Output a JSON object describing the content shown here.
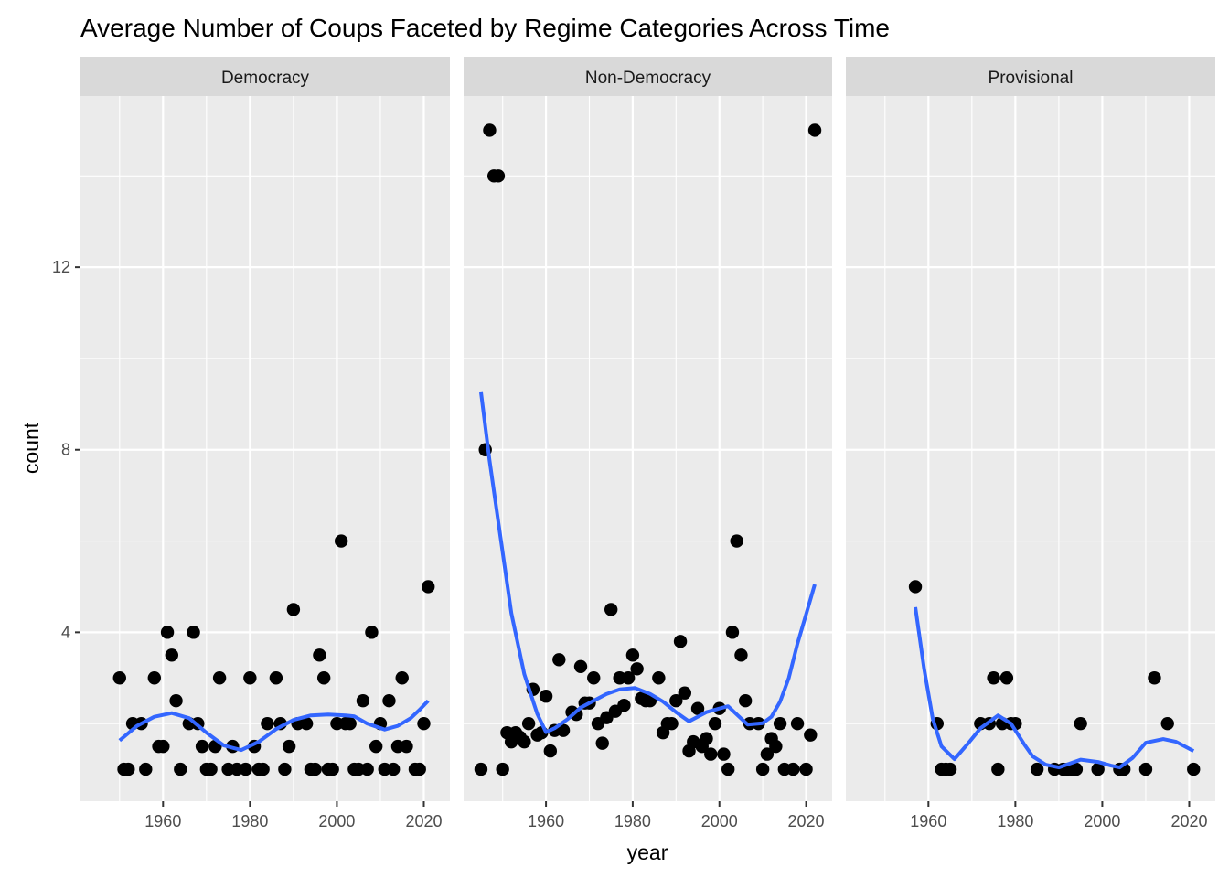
{
  "chart_data": {
    "type": "scatter",
    "title": "Average Number of Coups Faceted by Regime Categories Across Time",
    "xlabel": "year",
    "ylabel": "count",
    "xlim": [
      1941,
      2026
    ],
    "ylim": [
      0.3,
      15.75
    ],
    "x_ticks": [
      1960,
      1980,
      2000,
      2020
    ],
    "y_ticks": [
      4,
      8,
      12
    ],
    "grid": true,
    "legend": null,
    "point_color": "#000000",
    "smooth_color": "#3366FF",
    "panel_background": "#EBEBEB",
    "strip_background": "#D9D9D9",
    "facets": [
      {
        "label": "Democracy",
        "points": [
          [
            1950,
            3
          ],
          [
            1951,
            1
          ],
          [
            1952,
            1
          ],
          [
            1953,
            2
          ],
          [
            1955,
            2
          ],
          [
            1956,
            1
          ],
          [
            1958,
            3
          ],
          [
            1959,
            1.5
          ],
          [
            1960,
            1.5
          ],
          [
            1961,
            4
          ],
          [
            1962,
            3.5
          ],
          [
            1963,
            2.5
          ],
          [
            1964,
            1
          ],
          [
            1966,
            2
          ],
          [
            1967,
            4
          ],
          [
            1968,
            2
          ],
          [
            1969,
            1.5
          ],
          [
            1970,
            1
          ],
          [
            1971,
            1
          ],
          [
            1972,
            1.5
          ],
          [
            1973,
            3
          ],
          [
            1975,
            1
          ],
          [
            1976,
            1.5
          ],
          [
            1977,
            1
          ],
          [
            1979,
            1
          ],
          [
            1980,
            3
          ],
          [
            1981,
            1.5
          ],
          [
            1982,
            1
          ],
          [
            1983,
            1
          ],
          [
            1984,
            2
          ],
          [
            1986,
            3
          ],
          [
            1987,
            2
          ],
          [
            1988,
            1
          ],
          [
            1989,
            1.5
          ],
          [
            1990,
            4.5
          ],
          [
            1991,
            2
          ],
          [
            1993,
            2
          ],
          [
            1994,
            1
          ],
          [
            1995,
            1
          ],
          [
            1996,
            3.5
          ],
          [
            1997,
            3
          ],
          [
            1998,
            1
          ],
          [
            1999,
            1
          ],
          [
            2000,
            2
          ],
          [
            2001,
            6
          ],
          [
            2002,
            2
          ],
          [
            2003,
            2
          ],
          [
            2004,
            1
          ],
          [
            2005,
            1
          ],
          [
            2006,
            2.5
          ],
          [
            2007,
            1
          ],
          [
            2008,
            4
          ],
          [
            2009,
            1.5
          ],
          [
            2010,
            2
          ],
          [
            2011,
            1
          ],
          [
            2012,
            2.5
          ],
          [
            2013,
            1
          ],
          [
            2014,
            1.5
          ],
          [
            2015,
            3
          ],
          [
            2016,
            1.5
          ],
          [
            2018,
            1
          ],
          [
            2019,
            1
          ],
          [
            2020,
            2
          ],
          [
            2021,
            5
          ]
        ],
        "smooth": [
          [
            1950,
            1.63
          ],
          [
            1954,
            1.95
          ],
          [
            1958,
            2.15
          ],
          [
            1962,
            2.23
          ],
          [
            1966,
            2.12
          ],
          [
            1970,
            1.8
          ],
          [
            1974,
            1.52
          ],
          [
            1978,
            1.42
          ],
          [
            1982,
            1.6
          ],
          [
            1986,
            1.88
          ],
          [
            1990,
            2.08
          ],
          [
            1994,
            2.18
          ],
          [
            1998,
            2.2
          ],
          [
            2002,
            2.18
          ],
          [
            2004,
            2.16
          ],
          [
            2007,
            2.0
          ],
          [
            2011,
            1.87
          ],
          [
            2014,
            1.95
          ],
          [
            2017,
            2.12
          ],
          [
            2019,
            2.3
          ],
          [
            2021,
            2.5
          ]
        ]
      },
      {
        "label": "Non-Democracy",
        "points": [
          [
            1945,
            1
          ],
          [
            1946,
            8
          ],
          [
            1947,
            15
          ],
          [
            1948,
            14
          ],
          [
            1949,
            14
          ],
          [
            1950,
            1
          ],
          [
            1951,
            1.8
          ],
          [
            1952,
            1.6
          ],
          [
            1953,
            1.8
          ],
          [
            1954,
            1.7
          ],
          [
            1955,
            1.6
          ],
          [
            1956,
            2
          ],
          [
            1957,
            2.75
          ],
          [
            1958,
            1.75
          ],
          [
            1959,
            1.8
          ],
          [
            1960,
            2.6
          ],
          [
            1961,
            1.4
          ],
          [
            1962,
            1.85
          ],
          [
            1963,
            3.4
          ],
          [
            1964,
            1.85
          ],
          [
            1966,
            2.25
          ],
          [
            1967,
            2.2
          ],
          [
            1968,
            3.25
          ],
          [
            1969,
            2.45
          ],
          [
            1970,
            2.45
          ],
          [
            1971,
            3
          ],
          [
            1972,
            2
          ],
          [
            1973,
            1.57
          ],
          [
            1974,
            2.13
          ],
          [
            1975,
            4.5
          ],
          [
            1976,
            2.27
          ],
          [
            1977,
            3
          ],
          [
            1978,
            2.4
          ],
          [
            1979,
            3
          ],
          [
            1980,
            3.5
          ],
          [
            1981,
            3.2
          ],
          [
            1982,
            2.55
          ],
          [
            1983,
            2.5
          ],
          [
            1984,
            2.5
          ],
          [
            1986,
            3
          ],
          [
            1987,
            1.8
          ],
          [
            1988,
            2
          ],
          [
            1989,
            2
          ],
          [
            1990,
            2.5
          ],
          [
            1991,
            3.8
          ],
          [
            1992,
            2.67
          ],
          [
            1993,
            1.4
          ],
          [
            1994,
            1.6
          ],
          [
            1995,
            2.33
          ],
          [
            1996,
            1.5
          ],
          [
            1997,
            1.67
          ],
          [
            1998,
            1.33
          ],
          [
            1999,
            2
          ],
          [
            2000,
            2.33
          ],
          [
            2001,
            1.33
          ],
          [
            2002,
            1
          ],
          [
            2003,
            4
          ],
          [
            2004,
            6
          ],
          [
            2005,
            3.5
          ],
          [
            2006,
            2.5
          ],
          [
            2007,
            2
          ],
          [
            2009,
            2
          ],
          [
            2010,
            1
          ],
          [
            2011,
            1.33
          ],
          [
            2012,
            1.67
          ],
          [
            2013,
            1.5
          ],
          [
            2014,
            2
          ],
          [
            2015,
            1
          ],
          [
            2017,
            1
          ],
          [
            2018,
            2
          ],
          [
            2020,
            1
          ],
          [
            2021,
            1.75
          ],
          [
            2022,
            15
          ]
        ],
        "smooth": [
          [
            1945,
            9.26
          ],
          [
            1947,
            7.76
          ],
          [
            1949.5,
            6.09
          ],
          [
            1952,
            4.42
          ],
          [
            1955,
            3.08
          ],
          [
            1958,
            2.21
          ],
          [
            1960,
            1.81
          ],
          [
            1962,
            1.9
          ],
          [
            1965,
            2.1
          ],
          [
            1968,
            2.35
          ],
          [
            1971,
            2.5
          ],
          [
            1974,
            2.65
          ],
          [
            1977,
            2.75
          ],
          [
            1980.5,
            2.78
          ],
          [
            1984,
            2.65
          ],
          [
            1987,
            2.48
          ],
          [
            1990,
            2.25
          ],
          [
            1993,
            2.05
          ],
          [
            1997,
            2.25
          ],
          [
            2000,
            2.33
          ],
          [
            2002,
            2.38
          ],
          [
            2004,
            2.2
          ],
          [
            2006.5,
            1.98
          ],
          [
            2010,
            2.01
          ],
          [
            2012,
            2.15
          ],
          [
            2014,
            2.48
          ],
          [
            2016,
            3.0
          ],
          [
            2018,
            3.75
          ],
          [
            2020,
            4.4
          ],
          [
            2022,
            5.05
          ]
        ]
      },
      {
        "label": "Provisional",
        "points": [
          [
            1957,
            5
          ],
          [
            1962,
            2
          ],
          [
            1963,
            1
          ],
          [
            1964,
            1
          ],
          [
            1965,
            1
          ],
          [
            1972,
            2
          ],
          [
            1974,
            2
          ],
          [
            1975,
            3
          ],
          [
            1976,
            1
          ],
          [
            1977,
            2
          ],
          [
            1978,
            3
          ],
          [
            1979,
            2
          ],
          [
            1980,
            2
          ],
          [
            1985,
            1
          ],
          [
            1989,
            1
          ],
          [
            1991,
            1
          ],
          [
            1992,
            1
          ],
          [
            1993,
            1
          ],
          [
            1994,
            1
          ],
          [
            1995,
            2
          ],
          [
            1999,
            1
          ],
          [
            2004,
            1
          ],
          [
            2005,
            1
          ],
          [
            2010,
            1
          ],
          [
            2012,
            3
          ],
          [
            2015,
            2
          ],
          [
            2021,
            1
          ]
        ],
        "smooth": [
          [
            1957,
            4.55
          ],
          [
            1959,
            3.2
          ],
          [
            1961,
            2.1
          ],
          [
            1963,
            1.5
          ],
          [
            1966,
            1.22
          ],
          [
            1969,
            1.55
          ],
          [
            1972,
            1.9
          ],
          [
            1976,
            2.18
          ],
          [
            1979,
            2.0
          ],
          [
            1982,
            1.55
          ],
          [
            1984,
            1.28
          ],
          [
            1987,
            1.1
          ],
          [
            1990,
            1.04
          ],
          [
            1995,
            1.21
          ],
          [
            1999,
            1.16
          ],
          [
            2002,
            1.08
          ],
          [
            2004,
            1.04
          ],
          [
            2007,
            1.25
          ],
          [
            2010,
            1.58
          ],
          [
            2014,
            1.66
          ],
          [
            2017,
            1.6
          ],
          [
            2021,
            1.4
          ]
        ]
      }
    ]
  }
}
